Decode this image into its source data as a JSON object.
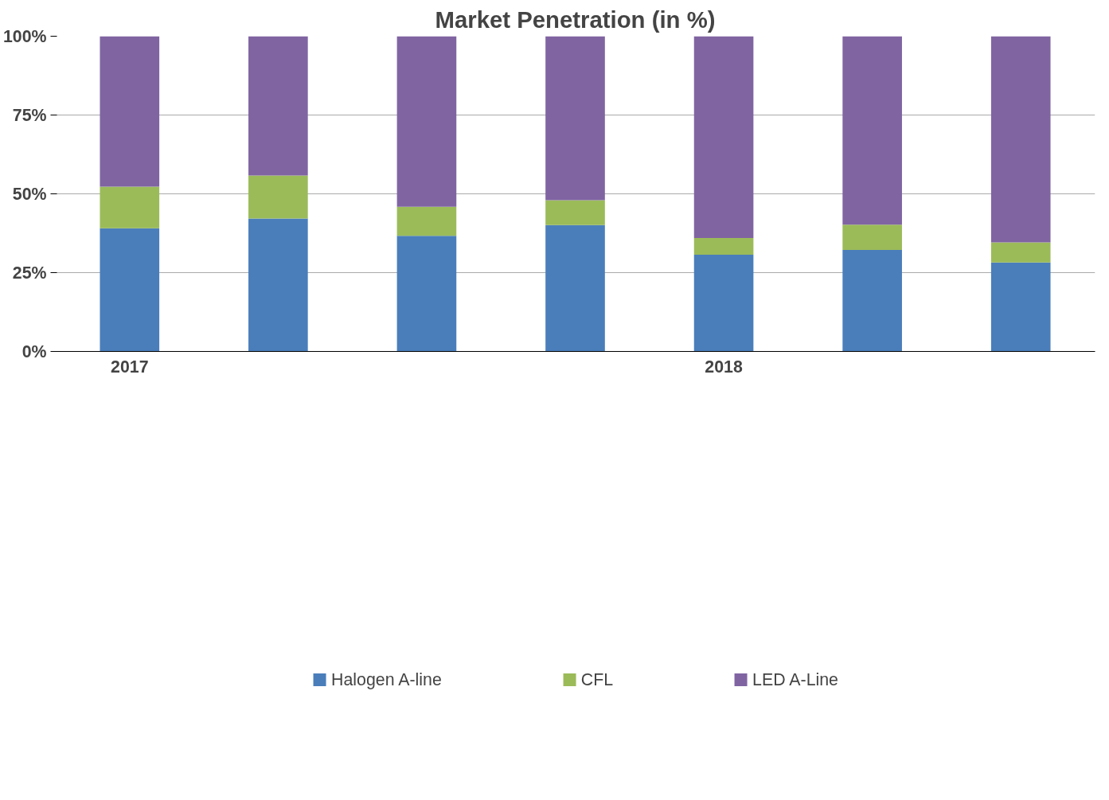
{
  "chart_data": {
    "type": "bar",
    "title": "Market Penetration (in %)",
    "stacked": true,
    "categories": [
      "2017",
      null,
      null,
      null,
      "2018",
      null,
      null
    ],
    "series": [
      {
        "name": "Halogen A-line",
        "color": "#4a7ebb",
        "values": [
          39.1,
          42.2,
          36.7,
          40.1,
          30.7,
          32.2,
          28.2
        ]
      },
      {
        "name": "CFL",
        "color": "#9bbb59",
        "values": [
          13.2,
          13.6,
          9.2,
          7.9,
          5.3,
          8.0,
          6.4
        ]
      },
      {
        "name": "LED A-Line",
        "color": "#8064a2",
        "values": [
          47.7,
          44.2,
          54.1,
          52.0,
          64.0,
          59.8,
          65.4
        ]
      }
    ],
    "ylim": [
      0,
      100
    ],
    "yticks": [
      {
        "value": 0,
        "label": "0%"
      },
      {
        "value": 25,
        "label": "25%"
      },
      {
        "value": 50,
        "label": "50%"
      },
      {
        "value": 75,
        "label": "75%"
      },
      {
        "value": 100,
        "label": "100%"
      }
    ],
    "grid": "y",
    "legend": "bottom"
  }
}
